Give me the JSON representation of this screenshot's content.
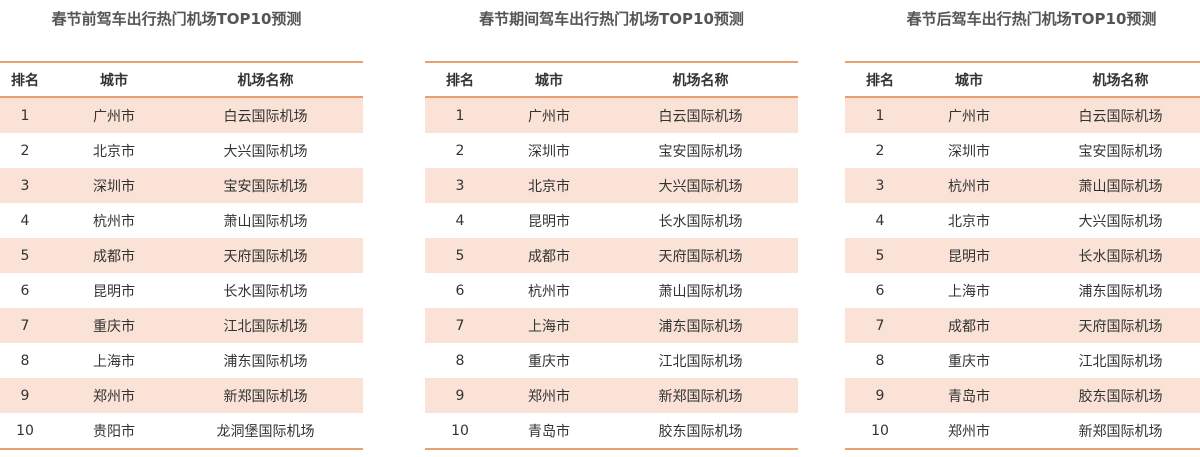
{
  "headers": {
    "rank": "排名",
    "city": "城市",
    "airport": "机场名称"
  },
  "tables": [
    {
      "title": "春节前驾车出行热门机场TOP10预测",
      "rows": [
        {
          "rank": "1",
          "city": "广州市",
          "airport": "白云国际机场"
        },
        {
          "rank": "2",
          "city": "北京市",
          "airport": "大兴国际机场"
        },
        {
          "rank": "3",
          "city": "深圳市",
          "airport": "宝安国际机场"
        },
        {
          "rank": "4",
          "city": "杭州市",
          "airport": "萧山国际机场"
        },
        {
          "rank": "5",
          "city": "成都市",
          "airport": "天府国际机场"
        },
        {
          "rank": "6",
          "city": "昆明市",
          "airport": "长水国际机场"
        },
        {
          "rank": "7",
          "city": "重庆市",
          "airport": "江北国际机场"
        },
        {
          "rank": "8",
          "city": "上海市",
          "airport": "浦东国际机场"
        },
        {
          "rank": "9",
          "city": "郑州市",
          "airport": "新郑国际机场"
        },
        {
          "rank": "10",
          "city": "贵阳市",
          "airport": "龙洞堡国际机场"
        }
      ]
    },
    {
      "title": "春节期间驾车出行热门机场TOP10预测",
      "rows": [
        {
          "rank": "1",
          "city": "广州市",
          "airport": "白云国际机场"
        },
        {
          "rank": "2",
          "city": "深圳市",
          "airport": "宝安国际机场"
        },
        {
          "rank": "3",
          "city": "北京市",
          "airport": "大兴国际机场"
        },
        {
          "rank": "4",
          "city": "昆明市",
          "airport": "长水国际机场"
        },
        {
          "rank": "5",
          "city": "成都市",
          "airport": "天府国际机场"
        },
        {
          "rank": "6",
          "city": "杭州市",
          "airport": "萧山国际机场"
        },
        {
          "rank": "7",
          "city": "上海市",
          "airport": "浦东国际机场"
        },
        {
          "rank": "8",
          "city": "重庆市",
          "airport": "江北国际机场"
        },
        {
          "rank": "9",
          "city": "郑州市",
          "airport": "新郑国际机场"
        },
        {
          "rank": "10",
          "city": "青岛市",
          "airport": "胶东国际机场"
        }
      ]
    },
    {
      "title": "春节后驾车出行热门机场TOP10预测",
      "rows": [
        {
          "rank": "1",
          "city": "广州市",
          "airport": "白云国际机场"
        },
        {
          "rank": "2",
          "city": "深圳市",
          "airport": "宝安国际机场"
        },
        {
          "rank": "3",
          "city": "杭州市",
          "airport": "萧山国际机场"
        },
        {
          "rank": "4",
          "city": "北京市",
          "airport": "大兴国际机场"
        },
        {
          "rank": "5",
          "city": "昆明市",
          "airport": "长水国际机场"
        },
        {
          "rank": "6",
          "city": "上海市",
          "airport": "浦东国际机场"
        },
        {
          "rank": "7",
          "city": "成都市",
          "airport": "天府国际机场"
        },
        {
          "rank": "8",
          "city": "重庆市",
          "airport": "江北国际机场"
        },
        {
          "rank": "9",
          "city": "青岛市",
          "airport": "胶东国际机场"
        },
        {
          "rank": "10",
          "city": "郑州市",
          "airport": "新郑国际机场"
        }
      ]
    }
  ],
  "colors": {
    "accent_line": "#e9a070",
    "row_fill": "#fae3d6"
  }
}
